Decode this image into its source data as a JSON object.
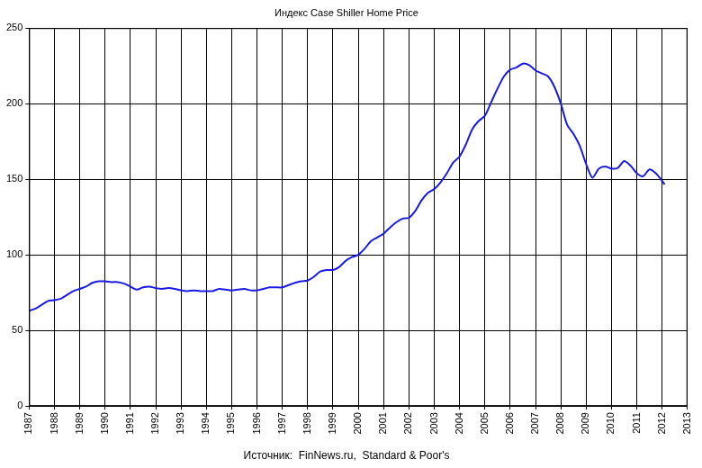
{
  "chart_data": {
    "type": "line",
    "title": "Индекс Case Shiller Home Price",
    "subtitle": "Источник:  FinNews.ru,  Standard & Poor's",
    "x": [
      1987.0,
      1987.25,
      1987.5,
      1987.75,
      1988.0,
      1988.25,
      1988.5,
      1988.75,
      1989.0,
      1989.25,
      1989.5,
      1989.75,
      1990.0,
      1990.25,
      1990.5,
      1990.75,
      1991.0,
      1991.25,
      1991.5,
      1991.75,
      1992.0,
      1992.25,
      1992.5,
      1992.75,
      1993.0,
      1993.25,
      1993.5,
      1993.75,
      1994.0,
      1994.25,
      1994.5,
      1994.75,
      1995.0,
      1995.25,
      1995.5,
      1995.75,
      1996.0,
      1996.25,
      1996.5,
      1996.75,
      1997.0,
      1997.25,
      1997.5,
      1997.75,
      1998.0,
      1998.25,
      1998.5,
      1998.75,
      1999.0,
      1999.25,
      1999.5,
      1999.75,
      2000.0,
      2000.25,
      2000.5,
      2000.75,
      2001.0,
      2001.25,
      2001.5,
      2001.75,
      2002.0,
      2002.25,
      2002.5,
      2002.75,
      2003.0,
      2003.25,
      2003.5,
      2003.75,
      2004.0,
      2004.25,
      2004.5,
      2004.75,
      2005.0,
      2005.25,
      2005.5,
      2005.75,
      2006.0,
      2006.25,
      2006.5,
      2006.75,
      2007.0,
      2007.25,
      2007.5,
      2007.75,
      2008.0,
      2008.25,
      2008.5,
      2008.75,
      2009.0,
      2009.25,
      2009.5,
      2009.75,
      2010.0,
      2010.25,
      2010.5,
      2010.75,
      2011.0,
      2011.25,
      2011.5,
      2011.75,
      2012.0,
      2012.1
    ],
    "series": [
      {
        "name": "Case Shiller Home Price",
        "color": "#1a1ae6",
        "values": [
          63,
          64.5,
          67,
          69.5,
          70,
          71,
          73.5,
          76,
          77.5,
          79,
          81.5,
          82.5,
          82.5,
          82,
          82,
          81,
          79,
          77,
          78.5,
          79,
          78,
          77.5,
          78,
          77.5,
          76.5,
          76,
          76.5,
          76,
          76,
          76,
          77.5,
          77,
          76.5,
          77,
          77.5,
          76.5,
          76.5,
          77.5,
          78.5,
          78.5,
          78.5,
          80,
          81.5,
          82.5,
          83,
          85.5,
          89,
          90,
          90,
          92,
          96,
          98.5,
          100,
          104,
          109,
          111.5,
          114,
          118,
          121.5,
          124,
          124.5,
          129,
          136,
          141,
          143.5,
          148,
          154,
          161,
          165,
          173,
          183,
          188.5,
          192,
          201,
          210,
          218,
          222.5,
          224,
          226.5,
          225.5,
          222,
          220,
          218,
          211,
          200,
          186,
          180,
          172,
          160,
          151,
          157,
          158.5,
          157,
          157.5,
          162,
          159,
          154,
          152,
          156.5,
          154,
          149,
          146.5
        ]
      }
    ],
    "xlim": [
      1987,
      2013
    ],
    "xticks": [
      1987,
      1988,
      1989,
      1990,
      1991,
      1992,
      1993,
      1994,
      1995,
      1996,
      1997,
      1998,
      1999,
      2000,
      2001,
      2002,
      2003,
      2004,
      2005,
      2006,
      2007,
      2008,
      2009,
      2010,
      2011,
      2012,
      2013
    ],
    "ylim": [
      0,
      250
    ],
    "yticks": [
      0,
      50,
      100,
      150,
      200,
      250
    ],
    "grid": true
  }
}
